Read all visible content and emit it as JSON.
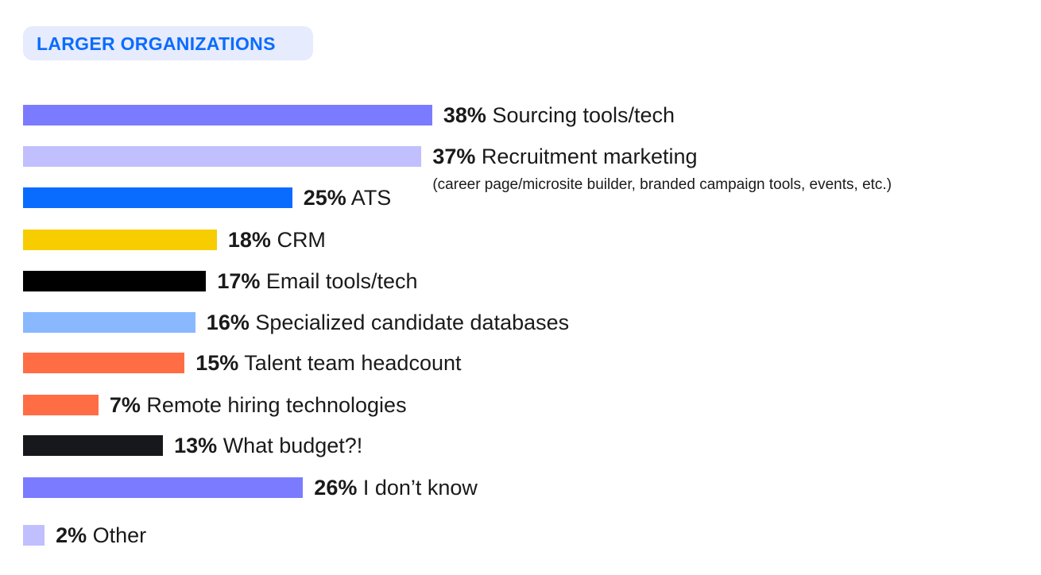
{
  "header": {
    "title": "LARGER ORGANIZATIONS"
  },
  "chart_data": {
    "type": "bar",
    "orientation": "horizontal",
    "title": "LARGER ORGANIZATIONS",
    "categories": [
      "Sourcing tools/tech",
      "Recruitment marketing",
      "ATS",
      "CRM",
      "Email tools/tech",
      "Specialized candidate databases",
      "Talent team headcount",
      "Remote hiring technologies",
      "What budget?!",
      "I don’t know",
      "Other"
    ],
    "values": [
      38,
      37,
      25,
      18,
      17,
      16,
      15,
      7,
      13,
      26,
      2
    ],
    "value_labels": [
      "38%",
      "37%",
      "25%",
      "18%",
      "17%",
      "16%",
      "15%",
      "7%",
      "13%",
      "26%",
      "2%"
    ],
    "colors": [
      "#7b7bff",
      "#c1bffd",
      "#0a6cff",
      "#f7cd00",
      "#000000",
      "#8ab8ff",
      "#ff6d45",
      "#ff6d45",
      "#17181b",
      "#7b7bff",
      "#c1bffd"
    ],
    "sublabels": {
      "1": "(career page/microsite builder, branded campaign tools, events, etc.)"
    },
    "xlabel": "",
    "ylabel": "",
    "xlim": [
      0,
      40
    ],
    "grid": false
  }
}
